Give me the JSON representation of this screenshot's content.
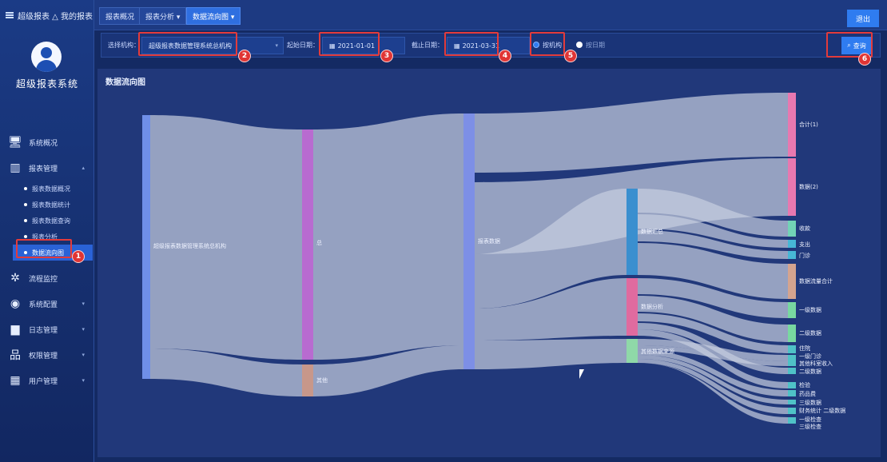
{
  "sidebar": {
    "brand": "超级报表 △ 我的报表 ▾",
    "system_title": "超级报表系统",
    "nav": [
      {
        "label": "系统概况",
        "icon": "monitor-icon"
      },
      {
        "label": "报表管理",
        "icon": "building-icon"
      }
    ],
    "sub_items": [
      "报表数据概况",
      "报表数据统计",
      "报表数据查询",
      "报表分析",
      "数据流向图"
    ],
    "nav_bottom": [
      {
        "label": "流程监控",
        "icon": "network-icon"
      },
      {
        "label": "系统配置",
        "icon": "compass-icon"
      },
      {
        "label": "日志管理",
        "icon": "folder-icon"
      },
      {
        "label": "权限管理",
        "icon": "org-chart-icon"
      },
      {
        "label": "用户管理",
        "icon": "qr-icon"
      }
    ]
  },
  "tabs": [
    "报表概况",
    "报表分析 ▾",
    "数据流向图 ▾"
  ],
  "topbar_button": "退出",
  "filter": {
    "label_1": "选择机构：",
    "value_1": "超级报表数据管理系统总机构",
    "label_2": "起始日期：",
    "value_2": "2021-01-01",
    "label_3": "截止日期：",
    "value_3": "2021-03-31",
    "radio_1": "按机构",
    "radio_2": "按日期",
    "query_button": "查询"
  },
  "panel": {
    "title": "数据流向图"
  },
  "annotations": [
    "1",
    "2",
    "3",
    "4",
    "5",
    "6"
  ],
  "colors": {
    "accent": "#2f7cf0",
    "highlight": "#e33b3b"
  },
  "sankey": {
    "labels": {
      "n0": "超级报表数据管理系统总机构",
      "n1": "总",
      "n2": "其他",
      "n3": "报表数据",
      "n4": "数据汇总",
      "n5": "数据分析",
      "n6": "其他数据来源",
      "t0": "合计(1)",
      "t1": "数据(2)",
      "t2": "收款",
      "t3": "支出",
      "t4": "门诊",
      "t5": "数据流量合计",
      "t6": "一级数据",
      "t7": "二级数据",
      "s0": "住院",
      "s1": "一级门诊",
      "s2": "其他科室收入",
      "s3": "二级数据",
      "s4": "检验",
      "s5": "药品费",
      "s6": "三级数据",
      "s7": "财务统计 二级数据",
      "s8": "一级检查",
      "s9": "三级检查"
    }
  }
}
